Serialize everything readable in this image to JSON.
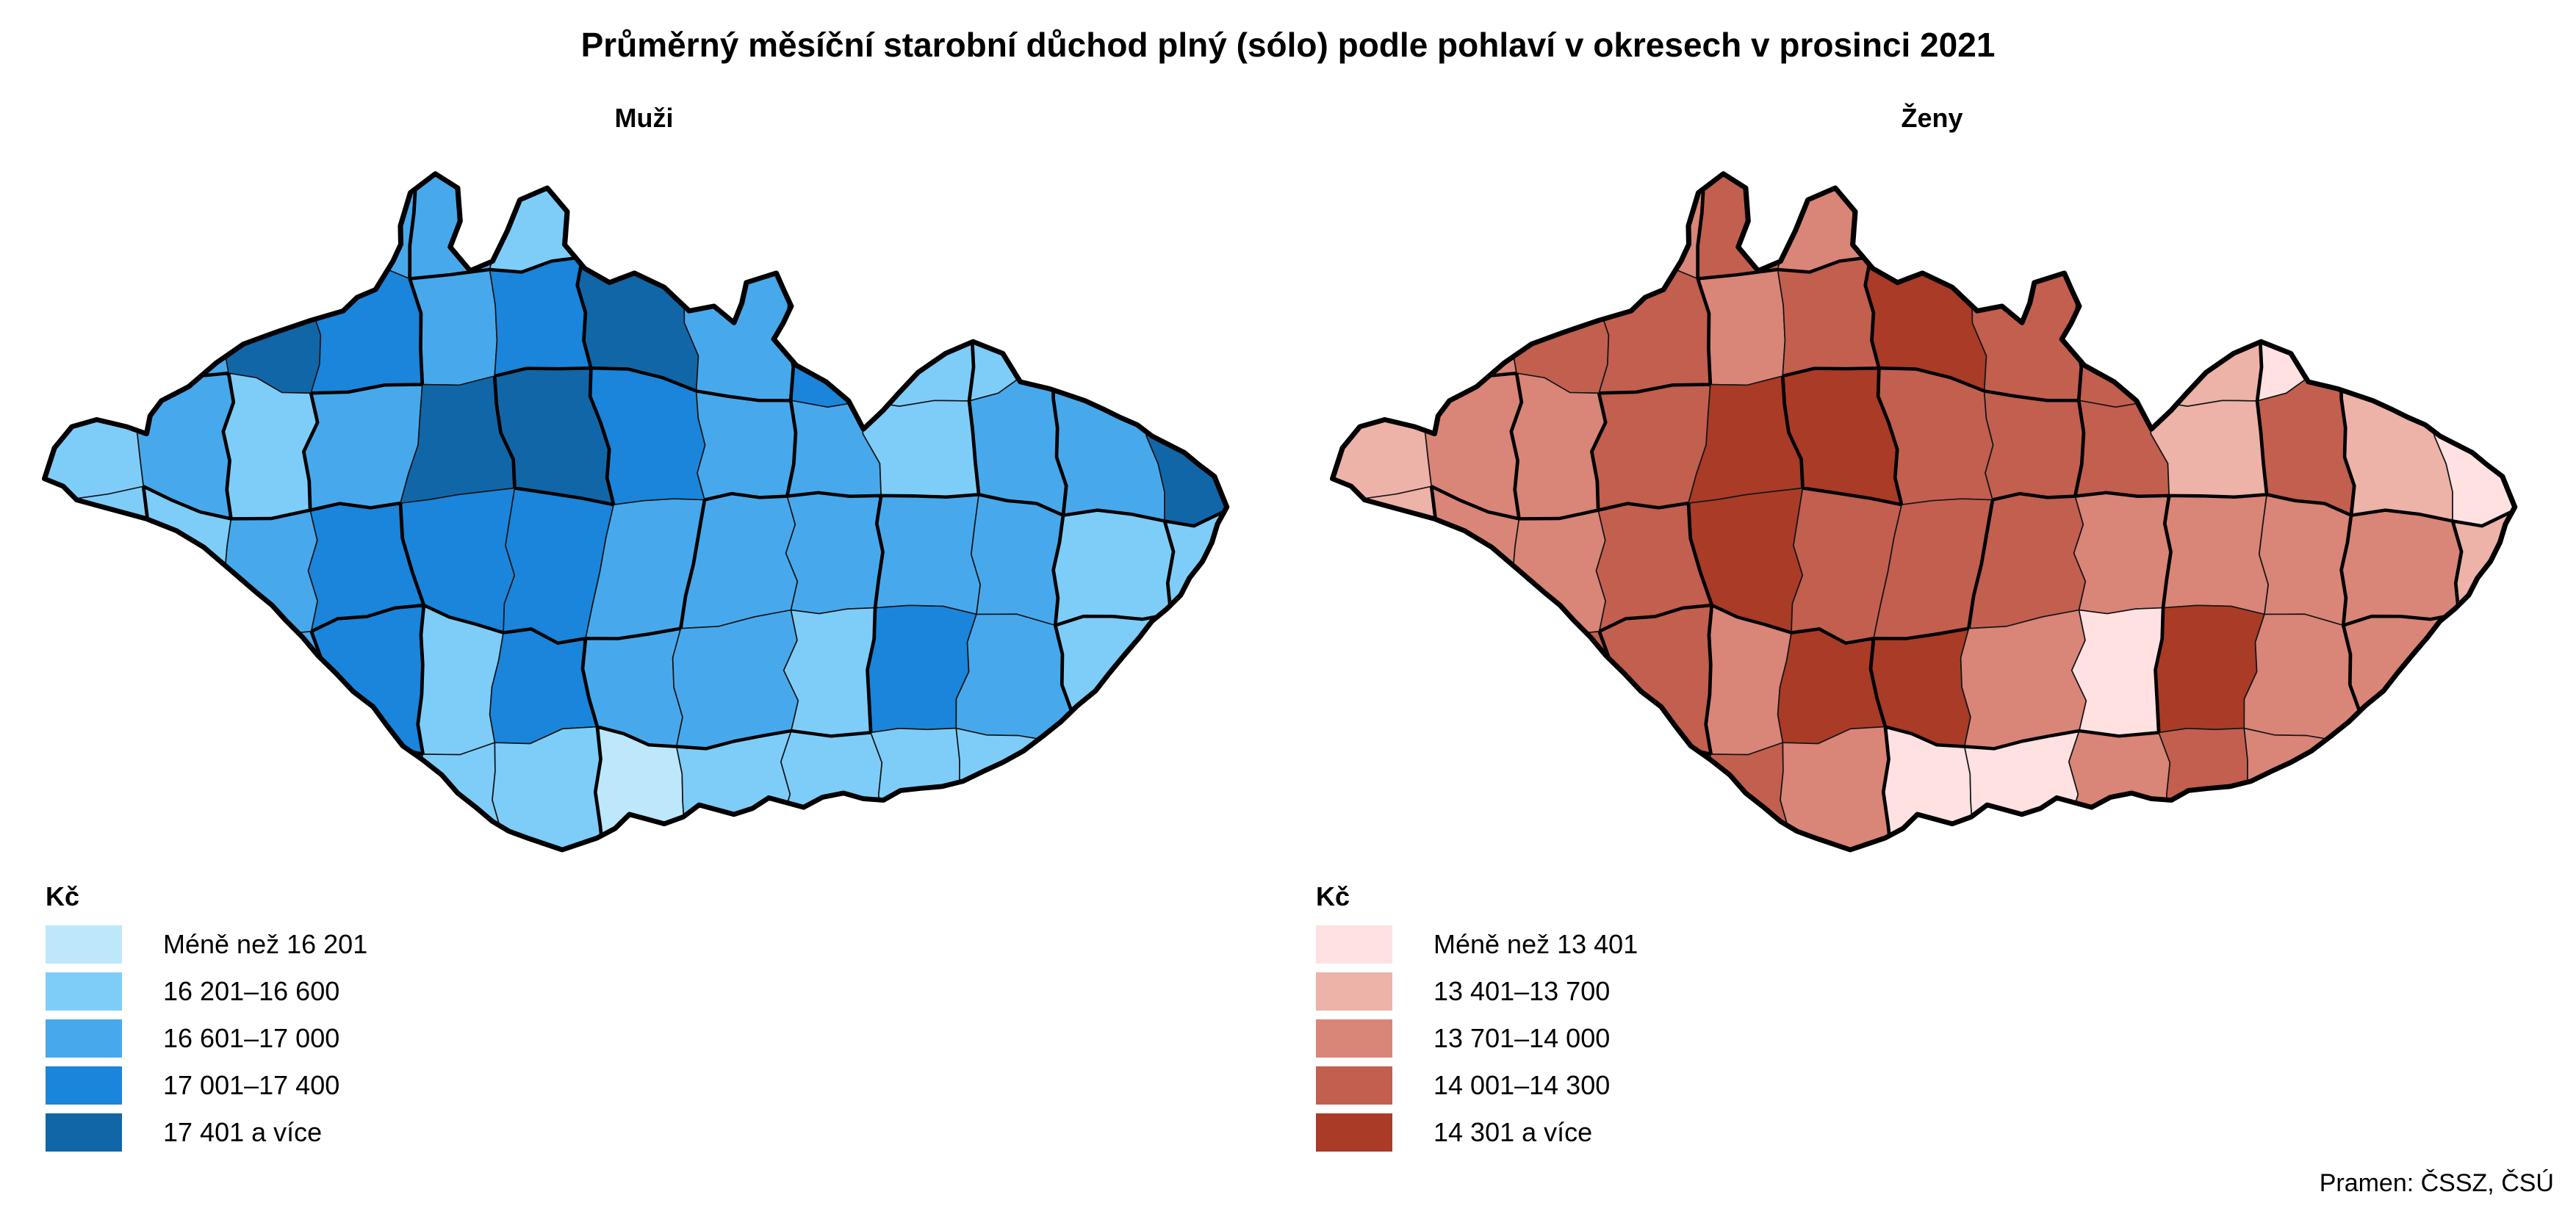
{
  "title": "Průměrný měsíční starobní důchod plný (sólo) podle pohlaví v okresech v prosinci 2021",
  "source": "Pramen: ČSSZ, ČSÚ",
  "maps": [
    {
      "id": "muzi",
      "subtitle": "Muži",
      "legend_title": "Kč",
      "classes": [
        {
          "label": "Méně než 16 201",
          "color": "#BDE7FB"
        },
        {
          "label": "16 201–16 600",
          "color": "#7ECDF9"
        },
        {
          "label": "16 601–17 000",
          "color": "#47A9EC"
        },
        {
          "label": "17 001–17 400",
          "color": "#1A85DA"
        },
        {
          "label": "17 401 a více",
          "color": "#1166A8"
        }
      ],
      "cells": [
        2,
        2,
        2,
        3,
        3,
        2,
        2,
        2,
        2,
        1,
        2,
        4,
        5,
        3,
        3,
        5,
        4,
        3,
        4,
        5,
        3,
        4,
        2,
        2,
        3,
        4,
        2,
        3,
        2,
        3,
        5,
        5,
        4,
        3,
        3,
        2,
        3,
        3,
        5,
        2,
        2,
        3,
        4,
        4,
        4,
        3,
        3,
        3,
        3,
        3,
        2,
        2,
        2,
        2,
        3,
        4,
        2,
        4,
        3,
        3,
        2,
        4,
        3,
        2,
        2,
        1,
        1,
        2,
        3,
        2,
        2,
        1,
        2,
        2,
        2,
        2,
        3,
        3
      ]
    },
    {
      "id": "zeny",
      "subtitle": "Ženy",
      "legend_title": "Kč",
      "classes": [
        {
          "label": "Méně než 13 401",
          "color": "#FFE1E1"
        },
        {
          "label": "13 401–13 700",
          "color": "#EDB2A8"
        },
        {
          "label": "13 701–14 000",
          "color": "#D98578"
        },
        {
          "label": "14 001–14 300",
          "color": "#C25F4F"
        },
        {
          "label": "14 301 a více",
          "color": "#A93B27"
        }
      ],
      "cells": [
        2,
        2,
        2,
        3,
        4,
        3,
        4,
        4,
        3,
        1,
        1,
        2,
        3,
        2,
        3,
        4,
        4,
        3,
        4,
        5,
        4,
        4,
        2,
        1,
        2,
        3,
        2,
        3,
        3,
        4,
        5,
        5,
        4,
        4,
        4,
        2,
        4,
        2,
        1,
        2,
        3,
        3,
        4,
        5,
        4,
        4,
        4,
        3,
        3,
        3,
        3,
        2,
        2,
        2,
        4,
        4,
        3,
        5,
        5,
        3,
        1,
        5,
        3,
        3,
        3,
        2,
        3,
        3,
        3,
        4,
        3,
        1,
        1,
        3,
        4,
        3,
        3,
        3
      ]
    }
  ],
  "chart_data": {
    "type": "heatmap",
    "subtype": "choropleth",
    "title": "Průměrný měsíční starobní důchod plný (sólo) podle pohlaví v okresech v prosinci 2021",
    "unit": "Kč",
    "legend_position": "bottom-left",
    "series": [
      {
        "name": "Muži",
        "bins": [
          "Méně než 16 201",
          "16 201–16 600",
          "16 601–17 000",
          "17 001–17 400",
          "17 401 a více"
        ],
        "colors": [
          "#BDE7FB",
          "#7ECDF9",
          "#47A9EC",
          "#1A85DA",
          "#1166A8"
        ]
      },
      {
        "name": "Ženy",
        "bins": [
          "Méně než 13 401",
          "13 401–13 700",
          "13 701–14 000",
          "14 001–14 300",
          "14 301 a více"
        ],
        "colors": [
          "#FFE1E1",
          "#EDB2A8",
          "#D98578",
          "#C25F4F",
          "#A93B27"
        ]
      }
    ],
    "source": "Pramen: ČSSZ, ČSÚ"
  }
}
